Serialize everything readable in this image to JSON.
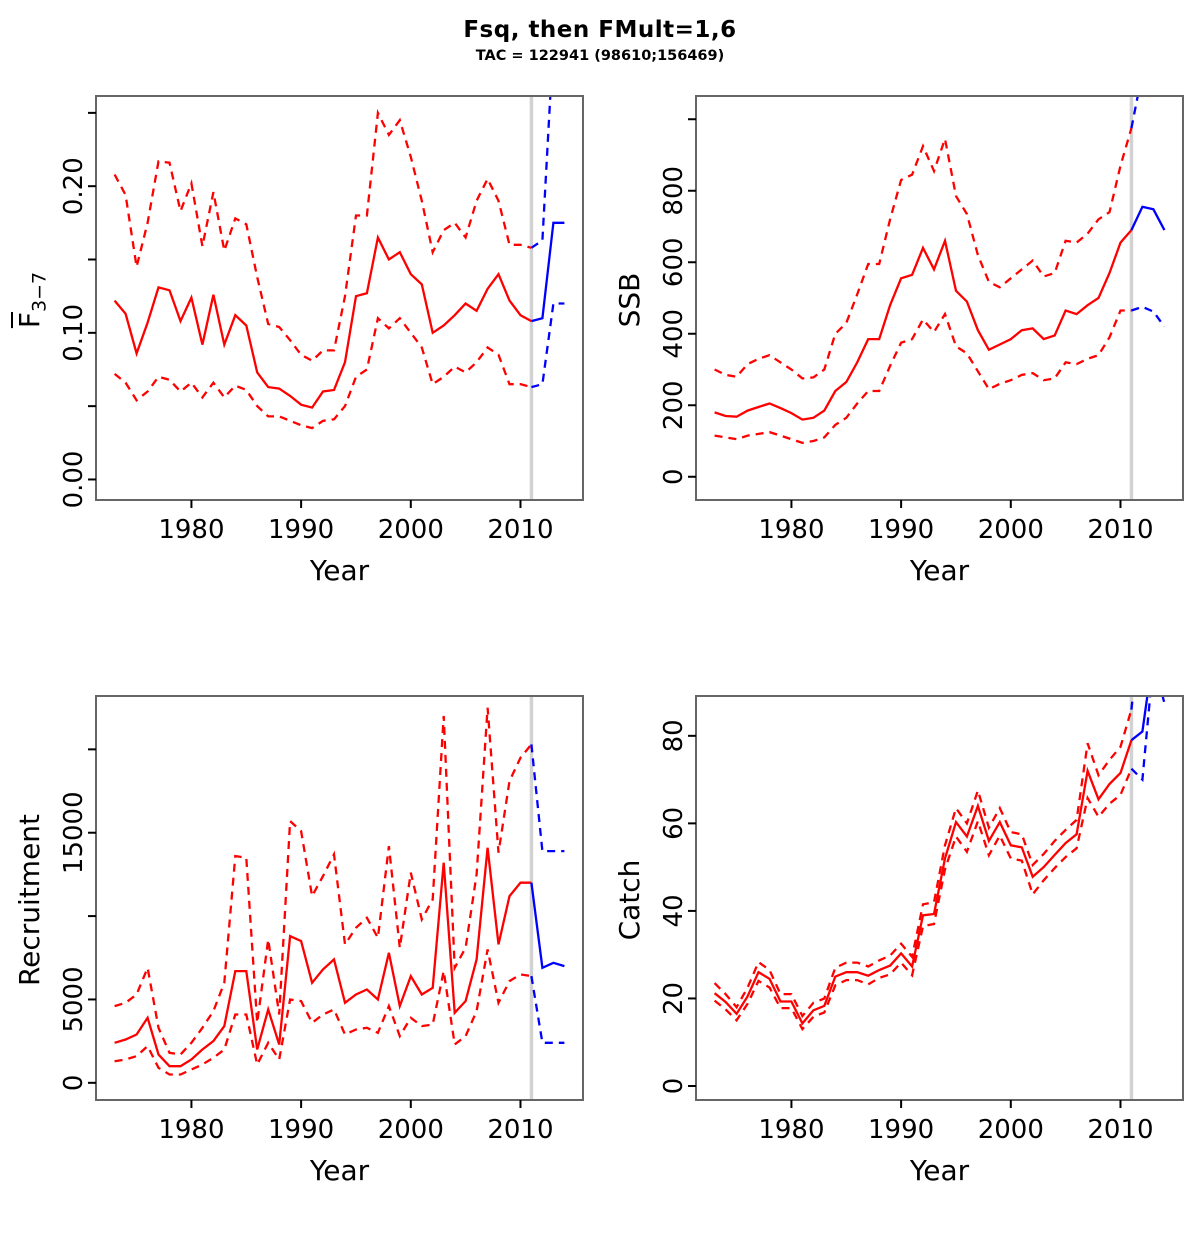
{
  "header": {
    "title": "Fsq, then FMult=1,6",
    "subtitle": "TAC = 122941 (98610;156469)"
  },
  "colors": {
    "historical": "#ff0000",
    "forecast": "#0000ff",
    "vline": "#d2d2d2",
    "box": "#666666",
    "tick": "#000000",
    "text": "#000000"
  },
  "chart_data": [
    {
      "name": "fbar",
      "type": "line",
      "xlabel": "Year",
      "ylabel": "F3-7",
      "ylabel_parts": {
        "base": "F",
        "sub": "3−7",
        "overline": true
      },
      "xlim": [
        1971.3,
        2015.7
      ],
      "ylim": [
        -0.014,
        0.2615
      ],
      "x_ticks": [
        1980,
        1990,
        2000,
        2010
      ],
      "y_ticks": [
        {
          "v": 0.0,
          "label": "0.00"
        },
        {
          "v": 0.05,
          "label": ""
        },
        {
          "v": 0.1,
          "label": "0.10"
        },
        {
          "v": 0.15,
          "label": ""
        },
        {
          "v": 0.2,
          "label": "0.20"
        },
        {
          "v": 0.25,
          "label": ""
        }
      ],
      "vline_x": 2011,
      "years": [
        1973,
        1974,
        1975,
        1976,
        1977,
        1978,
        1979,
        1980,
        1981,
        1982,
        1983,
        1984,
        1985,
        1986,
        1987,
        1988,
        1989,
        1990,
        1991,
        1992,
        1993,
        1994,
        1995,
        1996,
        1997,
        1998,
        1999,
        2000,
        2001,
        2002,
        2003,
        2004,
        2005,
        2006,
        2007,
        2008,
        2009,
        2010,
        2011
      ],
      "series": [
        {
          "name": "median",
          "style": "solid",
          "values": [
            0.122,
            0.113,
            0.086,
            0.107,
            0.131,
            0.129,
            0.108,
            0.124,
            0.092,
            0.126,
            0.092,
            0.112,
            0.105,
            0.073,
            0.063,
            0.062,
            0.057,
            0.051,
            0.049,
            0.06,
            0.061,
            0.08,
            0.125,
            0.127,
            0.165,
            0.15,
            0.155,
            0.14,
            0.133,
            0.1,
            0.105,
            0.112,
            0.12,
            0.115,
            0.13,
            0.14,
            0.122,
            0.112,
            0.108
          ]
        },
        {
          "name": "upper",
          "style": "dashed",
          "values": [
            0.208,
            0.194,
            0.145,
            0.175,
            0.217,
            0.216,
            0.183,
            0.202,
            0.159,
            0.196,
            0.156,
            0.178,
            0.174,
            0.138,
            0.106,
            0.104,
            0.095,
            0.085,
            0.081,
            0.088,
            0.088,
            0.125,
            0.18,
            0.18,
            0.25,
            0.235,
            0.245,
            0.22,
            0.19,
            0.155,
            0.17,
            0.175,
            0.165,
            0.19,
            0.205,
            0.19,
            0.16,
            0.16,
            0.158
          ]
        },
        {
          "name": "lower",
          "style": "dashed",
          "values": [
            0.072,
            0.066,
            0.054,
            0.06,
            0.07,
            0.068,
            0.06,
            0.066,
            0.056,
            0.066,
            0.056,
            0.064,
            0.061,
            0.05,
            0.043,
            0.043,
            0.04,
            0.037,
            0.035,
            0.04,
            0.041,
            0.05,
            0.07,
            0.075,
            0.11,
            0.103,
            0.11,
            0.1,
            0.09,
            0.065,
            0.07,
            0.077,
            0.073,
            0.08,
            0.09,
            0.085,
            0.065,
            0.065,
            0.063
          ]
        }
      ],
      "forecast_series": [
        {
          "name": "median",
          "style": "solid",
          "years": [
            2011,
            2012,
            2013,
            2014
          ],
          "values": [
            0.108,
            0.11,
            0.175,
            0.175
          ]
        },
        {
          "name": "upper",
          "style": "dashed",
          "years": [
            2011,
            2012,
            2013
          ],
          "values": [
            0.158,
            0.163,
            0.3
          ]
        },
        {
          "name": "lower",
          "style": "dashed",
          "years": [
            2011,
            2012,
            2013,
            2014
          ],
          "values": [
            0.063,
            0.065,
            0.12,
            0.12
          ]
        }
      ]
    },
    {
      "name": "ssb",
      "type": "line",
      "xlabel": "Year",
      "ylabel": "SSB",
      "xlim": [
        1971.3,
        2015.7
      ],
      "ylim": [
        -65,
        1065
      ],
      "x_ticks": [
        1980,
        1990,
        2000,
        2010
      ],
      "y_ticks": [
        {
          "v": 0,
          "label": "0"
        },
        {
          "v": 200,
          "label": "200"
        },
        {
          "v": 400,
          "label": "400"
        },
        {
          "v": 600,
          "label": "600"
        },
        {
          "v": 800,
          "label": "800"
        },
        {
          "v": 1000,
          "label": ""
        }
      ],
      "vline_x": 2011,
      "years": [
        1973,
        1974,
        1975,
        1976,
        1977,
        1978,
        1979,
        1980,
        1981,
        1982,
        1983,
        1984,
        1985,
        1986,
        1987,
        1988,
        1989,
        1990,
        1991,
        1992,
        1993,
        1994,
        1995,
        1996,
        1997,
        1998,
        1999,
        2000,
        2001,
        2002,
        2003,
        2004,
        2005,
        2006,
        2007,
        2008,
        2009,
        2010,
        2011
      ],
      "series": [
        {
          "name": "median",
          "style": "solid",
          "values": [
            180,
            170,
            168,
            185,
            195,
            205,
            192,
            178,
            160,
            165,
            185,
            240,
            265,
            320,
            385,
            385,
            480,
            555,
            565,
            640,
            580,
            660,
            520,
            490,
            410,
            355,
            370,
            385,
            410,
            415,
            385,
            395,
            465,
            455,
            480,
            500,
            570,
            655,
            690
          ]
        },
        {
          "name": "upper",
          "style": "dashed",
          "values": [
            300,
            285,
            280,
            315,
            330,
            340,
            320,
            300,
            275,
            278,
            300,
            400,
            430,
            510,
            595,
            595,
            720,
            830,
            845,
            925,
            855,
            945,
            785,
            735,
            620,
            545,
            530,
            555,
            580,
            605,
            560,
            570,
            660,
            655,
            680,
            720,
            740,
            870,
            975
          ]
        },
        {
          "name": "lower",
          "style": "dashed",
          "values": [
            115,
            110,
            105,
            115,
            120,
            125,
            115,
            105,
            95,
            100,
            110,
            145,
            165,
            205,
            240,
            240,
            310,
            375,
            385,
            440,
            405,
            455,
            365,
            345,
            295,
            245,
            260,
            270,
            285,
            290,
            270,
            275,
            320,
            315,
            330,
            340,
            390,
            465,
            465
          ]
        }
      ],
      "forecast_series": [
        {
          "name": "median",
          "style": "solid",
          "years": [
            2011,
            2012,
            2013,
            2014
          ],
          "values": [
            690,
            755,
            748,
            690
          ]
        },
        {
          "name": "upper",
          "style": "dashed",
          "years": [
            2011,
            2011.8
          ],
          "values": [
            975,
            1100
          ]
        },
        {
          "name": "lower",
          "style": "dashed",
          "years": [
            2011,
            2012,
            2013,
            2014
          ],
          "values": [
            465,
            475,
            462,
            420
          ]
        }
      ]
    },
    {
      "name": "recruitment",
      "type": "line",
      "xlabel": "Year",
      "ylabel": "Recruitment",
      "xlim": [
        1971.3,
        2015.7
      ],
      "ylim": [
        -1030,
        23200
      ],
      "x_ticks": [
        1980,
        1990,
        2000,
        2010
      ],
      "y_ticks": [
        {
          "v": 0,
          "label": "0"
        },
        {
          "v": 5000,
          "label": "5000"
        },
        {
          "v": 10000,
          "label": ""
        },
        {
          "v": 15000,
          "label": "15000"
        },
        {
          "v": 20000,
          "label": ""
        }
      ],
      "vline_x": 2011,
      "years": [
        1973,
        1974,
        1975,
        1976,
        1977,
        1978,
        1979,
        1980,
        1981,
        1982,
        1983,
        1984,
        1985,
        1986,
        1987,
        1988,
        1989,
        1990,
        1991,
        1992,
        1993,
        1994,
        1995,
        1996,
        1997,
        1998,
        1999,
        2000,
        2001,
        2002,
        2003,
        2004,
        2005,
        2006,
        2007,
        2008,
        2009,
        2010,
        2011
      ],
      "series": [
        {
          "name": "median",
          "style": "solid",
          "values": [
            2400,
            2600,
            2900,
            3900,
            1700,
            1000,
            1000,
            1400,
            2000,
            2500,
            3400,
            6700,
            6700,
            2000,
            4400,
            2300,
            8800,
            8500,
            6000,
            6800,
            7400,
            4800,
            5300,
            5600,
            5000,
            7800,
            4600,
            6400,
            5300,
            5700,
            13200,
            4200,
            4900,
            7400,
            14100,
            8300,
            11200,
            12000,
            12000
          ]
        },
        {
          "name": "upper",
          "style": "dashed",
          "values": [
            4600,
            4800,
            5300,
            6900,
            3300,
            1800,
            1700,
            2400,
            3300,
            4300,
            6000,
            13600,
            13500,
            3600,
            8600,
            4100,
            15700,
            15100,
            11200,
            12400,
            13700,
            8300,
            9300,
            9900,
            8700,
            14200,
            8100,
            12600,
            9800,
            11000,
            22000,
            6900,
            8100,
            12500,
            22500,
            13800,
            18100,
            19500,
            20300
          ]
        },
        {
          "name": "lower",
          "style": "dashed",
          "values": [
            1300,
            1400,
            1600,
            2200,
            900,
            500,
            500,
            800,
            1100,
            1500,
            2000,
            4100,
            4100,
            1100,
            2400,
            1400,
            5000,
            4900,
            3600,
            4100,
            4400,
            2900,
            3200,
            3300,
            3000,
            4600,
            2800,
            3900,
            3400,
            3500,
            6700,
            2300,
            2800,
            4300,
            8000,
            4800,
            6100,
            6500,
            6400
          ]
        }
      ],
      "forecast_series": [
        {
          "name": "median",
          "style": "solid",
          "years": [
            2011,
            2012,
            2013,
            2014
          ],
          "values": [
            12000,
            6900,
            7200,
            7000
          ]
        },
        {
          "name": "upper",
          "style": "dashed",
          "years": [
            2011,
            2012,
            2013,
            2014
          ],
          "values": [
            20300,
            13900,
            13900,
            13900
          ]
        },
        {
          "name": "lower",
          "style": "dashed",
          "years": [
            2011,
            2012,
            2013,
            2014
          ],
          "values": [
            6400,
            2400,
            2400,
            2400
          ]
        }
      ]
    },
    {
      "name": "catch",
      "type": "line",
      "xlabel": "Year",
      "ylabel": "Catch",
      "xlim": [
        1971.3,
        2015.7
      ],
      "ylim": [
        -3.2,
        89.1
      ],
      "x_ticks": [
        1980,
        1990,
        2000,
        2010
      ],
      "y_ticks": [
        {
          "v": 0,
          "label": "0"
        },
        {
          "v": 20,
          "label": "20"
        },
        {
          "v": 40,
          "label": "40"
        },
        {
          "v": 60,
          "label": "60"
        },
        {
          "v": 80,
          "label": "80"
        }
      ],
      "vline_x": 2011,
      "years": [
        1973,
        1974,
        1975,
        1976,
        1977,
        1978,
        1979,
        1980,
        1981,
        1982,
        1983,
        1984,
        1985,
        1986,
        1987,
        1988,
        1989,
        1990,
        1991,
        1992,
        1993,
        1994,
        1995,
        1996,
        1997,
        1998,
        1999,
        2000,
        2001,
        2002,
        2003,
        2004,
        2005,
        2006,
        2007,
        2008,
        2009,
        2010,
        2011
      ],
      "series": [
        {
          "name": "median",
          "style": "solid",
          "values": [
            21.2,
            19.2,
            16.5,
            20.5,
            26,
            24.5,
            19.3,
            19.3,
            14.3,
            17.3,
            18.3,
            25,
            26,
            26,
            25.2,
            26.5,
            27.5,
            30.3,
            27.3,
            39,
            39.3,
            52,
            60.3,
            57,
            64,
            56,
            60.3,
            55,
            54.5,
            47.8,
            50,
            52.8,
            55.5,
            57.5,
            72,
            65.5,
            69,
            71.5,
            79
          ]
        },
        {
          "name": "upper",
          "style": "dashed",
          "values": [
            23.5,
            21,
            18,
            22.5,
            28.3,
            26.5,
            21,
            21,
            16,
            19,
            20,
            27,
            28.2,
            28.2,
            27.3,
            28.7,
            29.8,
            32.5,
            29.5,
            41.5,
            42,
            55,
            63.5,
            60,
            67.5,
            59,
            63.5,
            58,
            57.5,
            50.5,
            53,
            56,
            58.5,
            60.8,
            78.3,
            71,
            74.5,
            77.5,
            86
          ]
        },
        {
          "name": "lower",
          "style": "dashed",
          "values": [
            19.5,
            17.5,
            15,
            18.8,
            24,
            22.5,
            17.8,
            17.8,
            13,
            15.8,
            16.8,
            23,
            24.2,
            24.2,
            23.2,
            24.7,
            25.5,
            28.2,
            25.3,
            36.5,
            37,
            49.5,
            57,
            53.5,
            60.5,
            52.7,
            57.2,
            52,
            51.5,
            43.8,
            47,
            49.8,
            52.3,
            54.3,
            65.8,
            61.5,
            64.5,
            66.5,
            72.5
          ]
        }
      ],
      "forecast_series": [
        {
          "name": "median",
          "style": "solid",
          "years": [
            2011,
            2012,
            2013
          ],
          "values": [
            79,
            81,
            99
          ]
        },
        {
          "name": "upper",
          "style": "dashed",
          "years": [
            2011,
            2011.6
          ],
          "values": [
            86,
            100
          ]
        },
        {
          "name": "lower",
          "style": "dashed",
          "years": [
            2011,
            2012,
            2013,
            2014
          ],
          "values": [
            72.5,
            70,
            97,
            87.5
          ]
        }
      ]
    }
  ]
}
